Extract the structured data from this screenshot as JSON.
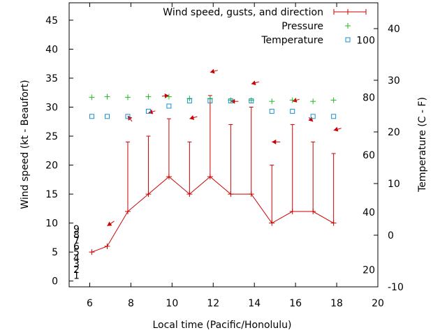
{
  "chart_data": {
    "type": "line",
    "xlabel": "Local time (Pacific/Honolulu)",
    "ylabel": "Wind speed (kt - Beaufort)",
    "y2label": "Temperature (C - F)",
    "xlim": [
      5,
      20
    ],
    "ylim": [
      -1,
      48
    ],
    "y2lim": [
      -10,
      45
    ],
    "x_ticks": [
      6,
      8,
      10,
      12,
      14,
      16,
      18,
      20
    ],
    "y_ticks": [
      0,
      5,
      10,
      15,
      20,
      25,
      30,
      35,
      40,
      45
    ],
    "y2_ticks": [
      -10,
      0,
      10,
      20,
      30,
      40
    ],
    "beaufort_labels": [
      {
        "value": 1,
        "label": "1"
      },
      {
        "value": 2,
        "label": "2"
      },
      {
        "value": 3,
        "label": "3"
      },
      {
        "value": 4,
        "label": "4"
      },
      {
        "value": 5,
        "label": "5"
      },
      {
        "value": 6,
        "label": "6"
      },
      {
        "value": 7,
        "label": "7"
      },
      {
        "value": 8,
        "label": "8"
      },
      {
        "value": 9,
        "label": "9"
      }
    ],
    "fahrenheit_labels": [
      {
        "value": 20,
        "label": "20"
      },
      {
        "value": 40,
        "label": "40"
      },
      {
        "value": 60,
        "label": "60"
      },
      {
        "value": 80,
        "label": "80"
      },
      {
        "value": 100,
        "label": "100"
      }
    ],
    "legend": [
      {
        "label": "Wind speed, gusts, and direction",
        "color": "#cc0000",
        "marker": "plus-errorbar"
      },
      {
        "label": "Pressure",
        "color": "#22bb22",
        "marker": "plus"
      },
      {
        "label": "Temperature",
        "color": "#1a8fcf",
        "marker": "square"
      }
    ],
    "series": [
      {
        "name": "Wind speed, gusts, and direction",
        "color": "#cc0000",
        "x": [
          6.1,
          6.85,
          7.85,
          8.85,
          9.85,
          10.85,
          11.85,
          12.85,
          13.85,
          14.85,
          15.85,
          16.85,
          17.85
        ],
        "speed": [
          5,
          6,
          12,
          15,
          18,
          15,
          18,
          15,
          15,
          10,
          12,
          12,
          10
        ],
        "gust": [
          null,
          null,
          24,
          25,
          28,
          24,
          32,
          27,
          30,
          20,
          27,
          24,
          22
        ]
      },
      {
        "name": "Pressure",
        "color": "#22bb22",
        "x": [
          6.1,
          6.85,
          7.85,
          8.85,
          9.85,
          10.85,
          11.85,
          12.85,
          13.85,
          14.85,
          15.85,
          16.85,
          17.85
        ],
        "values": [
          31.7,
          31.8,
          31.7,
          31.8,
          31.8,
          31.5,
          31.5,
          31.2,
          31.2,
          31.0,
          31.2,
          31.0,
          31.2
        ]
      },
      {
        "name": "Temperature",
        "color": "#1a8fcf",
        "x": [
          6.1,
          6.85,
          7.85,
          8.85,
          9.85,
          10.85,
          11.85,
          12.85,
          13.85,
          14.85,
          15.85,
          16.85,
          17.85
        ],
        "values": [
          23,
          23,
          23,
          24,
          25,
          26,
          26,
          26,
          26,
          24,
          24,
          23,
          23
        ]
      }
    ],
    "wind_arrows": [
      {
        "x": 6.85,
        "y": 9.5,
        "dx": 10,
        "dy": -7
      },
      {
        "x": 7.85,
        "y": 28.5,
        "dx": 6,
        "dy": 8
      },
      {
        "x": 8.85,
        "y": 29,
        "dx": 10,
        "dy": -3
      },
      {
        "x": 9.85,
        "y": 32,
        "dx": -10,
        "dy": 1
      },
      {
        "x": 10.85,
        "y": 28,
        "dx": 11,
        "dy": -3
      },
      {
        "x": 11.85,
        "y": 36,
        "dx": 11,
        "dy": -3
      },
      {
        "x": 12.85,
        "y": 31,
        "dx": 11,
        "dy": 0
      },
      {
        "x": 13.85,
        "y": 34,
        "dx": 11,
        "dy": -3
      },
      {
        "x": 14.85,
        "y": 24,
        "dx": 12,
        "dy": 0
      },
      {
        "x": 15.85,
        "y": 31,
        "dx": 10,
        "dy": -3
      },
      {
        "x": 16.85,
        "y": 27.5,
        "dx": -6,
        "dy": -6
      },
      {
        "x": 17.85,
        "y": 26,
        "dx": 11,
        "dy": -3
      }
    ]
  }
}
